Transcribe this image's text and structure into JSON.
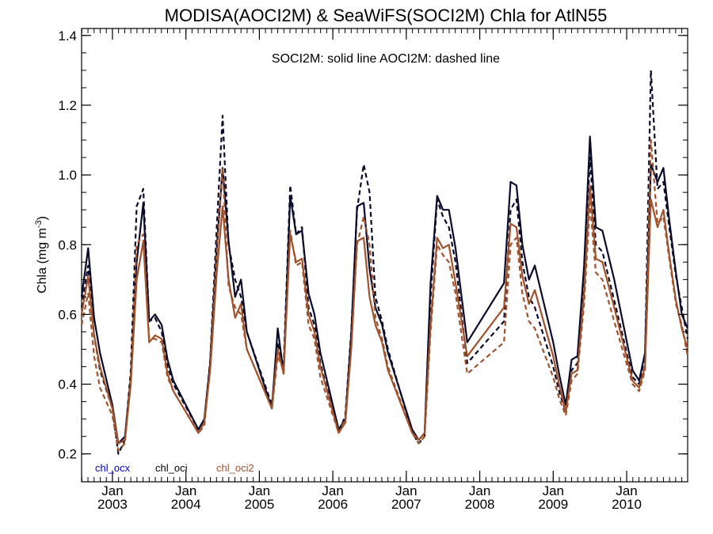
{
  "chart_data": {
    "type": "line",
    "title": "MODISA(AOCI2M) & SeaWiFS(SOCI2M)  Chla for AtlN55",
    "annotation": "SOCI2M: solid line   AOCI2M: dashed line",
    "ylabel": "Chla (mg m",
    "ylabel_sup": "-3",
    "ylabel_end": ")",
    "xlabel": "",
    "xlim": [
      2002.58,
      2010.83
    ],
    "ylim": [
      0.12,
      1.42
    ],
    "y_ticks": [
      0.2,
      0.4,
      0.6,
      0.8,
      1.0,
      1.2,
      1.4
    ],
    "y_tick_labels": [
      "0.2",
      "0.4",
      "0.6",
      "0.8",
      "1.0",
      "1.2",
      "1.4"
    ],
    "x_ticks": [
      2003,
      2004,
      2005,
      2006,
      2007,
      2008,
      2009,
      2010
    ],
    "x_tick_labels": [
      {
        "month": "Jan",
        "year": "2003"
      },
      {
        "month": "Jan",
        "year": "2004"
      },
      {
        "month": "Jan",
        "year": "2005"
      },
      {
        "month": "Jan",
        "year": "2006"
      },
      {
        "month": "Jan",
        "year": "2007"
      },
      {
        "month": "Jan",
        "year": "2008"
      },
      {
        "month": "Jan",
        "year": "2009"
      },
      {
        "month": "Jan",
        "year": "2010"
      }
    ],
    "legend": [
      {
        "name": "chl_ocx",
        "color": "#0000cc"
      },
      {
        "name": "chl_oci",
        "color": "#000000"
      },
      {
        "name": "chl_oci2",
        "color": "#a0522d"
      }
    ],
    "legend_position": "bottom-left",
    "series": [
      {
        "name": "chl_oci",
        "color": "#0a0a2a",
        "dash": false,
        "x": [
          2002.58,
          2002.67,
          2002.75,
          2002.83,
          2003.0,
          2003.08,
          2003.17,
          2003.25,
          2003.33,
          2003.42,
          2003.5,
          2003.58,
          2003.67,
          2003.75,
          2003.83,
          2004.17,
          2004.25,
          2004.33,
          2004.42,
          2004.5,
          2004.58,
          2004.67,
          2004.75,
          2004.83,
          2005.17,
          2005.25,
          2005.33,
          2005.42,
          2005.5,
          2005.58,
          2005.67,
          2005.75,
          2005.83,
          2006.08,
          2006.17,
          2006.25,
          2006.33,
          2006.42,
          2006.5,
          2006.58,
          2006.67,
          2006.75,
          2007.08,
          2007.17,
          2007.25,
          2007.33,
          2007.42,
          2007.5,
          2007.58,
          2007.67,
          2007.83,
          2008.33,
          2008.42,
          2008.5,
          2008.58,
          2008.67,
          2008.75,
          2009.0,
          2009.08,
          2009.17,
          2009.25,
          2009.33,
          2009.42,
          2009.5,
          2009.58,
          2009.67,
          2009.83,
          2010.08,
          2010.17,
          2010.25,
          2010.33,
          2010.42,
          2010.5,
          2010.58,
          2010.67,
          2010.75,
          2010.83
        ],
        "values": [
          0.65,
          0.79,
          0.59,
          0.49,
          0.34,
          0.23,
          0.25,
          0.42,
          0.75,
          0.92,
          0.58,
          0.6,
          0.57,
          0.47,
          0.41,
          0.27,
          0.3,
          0.46,
          0.79,
          1.02,
          0.81,
          0.65,
          0.7,
          0.55,
          0.33,
          0.56,
          0.43,
          0.94,
          0.83,
          0.84,
          0.66,
          0.6,
          0.49,
          0.27,
          0.3,
          0.54,
          0.91,
          0.92,
          0.73,
          0.62,
          0.57,
          0.49,
          0.27,
          0.24,
          0.26,
          0.69,
          0.94,
          0.9,
          0.9,
          0.79,
          0.52,
          0.69,
          0.98,
          0.97,
          0.8,
          0.7,
          0.74,
          0.52,
          0.43,
          0.34,
          0.47,
          0.48,
          0.74,
          1.11,
          0.85,
          0.84,
          0.7,
          0.44,
          0.41,
          0.49,
          1.03,
          0.98,
          1.02,
          0.87,
          0.72,
          0.6,
          0.56
        ]
      },
      {
        "name": "AOCI2M chl_oci",
        "color": "#0a0a2a",
        "dash": true,
        "x": [
          2002.58,
          2002.67,
          2002.75,
          2002.83,
          2003.0,
          2003.08,
          2003.17,
          2003.25,
          2003.33,
          2003.42,
          2003.5,
          2003.58,
          2003.67,
          2003.75,
          2003.83,
          2004.17,
          2004.25,
          2004.33,
          2004.42,
          2004.5,
          2004.58,
          2004.67,
          2004.75,
          2004.83,
          2005.17,
          2005.25,
          2005.33,
          2005.42,
          2005.5,
          2005.58,
          2005.67,
          2005.75,
          2005.83,
          2006.08,
          2006.17,
          2006.25,
          2006.33,
          2006.42,
          2006.5,
          2006.58,
          2006.67,
          2006.75,
          2007.08,
          2007.17,
          2007.25,
          2007.33,
          2007.42,
          2007.5,
          2007.58,
          2007.67,
          2007.83,
          2008.33,
          2008.42,
          2008.5,
          2008.58,
          2008.67,
          2008.75,
          2009.0,
          2009.08,
          2009.17,
          2009.25,
          2009.33,
          2009.42,
          2009.5,
          2009.58,
          2009.67,
          2009.83,
          2010.08,
          2010.17,
          2010.25,
          2010.33,
          2010.42,
          2010.5,
          2010.58,
          2010.67,
          2010.75,
          2010.83
        ],
        "values": [
          0.62,
          0.74,
          0.54,
          0.44,
          0.33,
          0.2,
          0.24,
          0.44,
          0.91,
          0.96,
          0.58,
          0.59,
          0.55,
          0.45,
          0.4,
          0.27,
          0.29,
          0.47,
          0.85,
          1.17,
          0.8,
          0.7,
          0.65,
          0.55,
          0.34,
          0.52,
          0.45,
          0.97,
          0.83,
          0.85,
          0.62,
          0.57,
          0.46,
          0.26,
          0.31,
          0.55,
          0.9,
          1.03,
          0.95,
          0.65,
          0.58,
          0.5,
          0.26,
          0.23,
          0.25,
          0.65,
          0.93,
          0.88,
          0.85,
          0.75,
          0.46,
          0.58,
          0.9,
          0.93,
          0.75,
          0.65,
          0.62,
          0.45,
          0.38,
          0.32,
          0.44,
          0.46,
          0.7,
          1.05,
          0.8,
          0.78,
          0.64,
          0.42,
          0.4,
          0.48,
          1.3,
          0.96,
          0.98,
          0.85,
          0.71,
          0.62,
          0.53
        ]
      },
      {
        "name": "chl_oci2",
        "color": "#a0522d",
        "dash": false,
        "x": [
          2002.58,
          2002.67,
          2002.75,
          2002.83,
          2003.0,
          2003.08,
          2003.17,
          2003.25,
          2003.33,
          2003.42,
          2003.5,
          2003.58,
          2003.67,
          2003.75,
          2003.83,
          2004.17,
          2004.25,
          2004.33,
          2004.42,
          2004.5,
          2004.58,
          2004.67,
          2004.75,
          2004.83,
          2005.17,
          2005.25,
          2005.33,
          2005.42,
          2005.5,
          2005.58,
          2005.67,
          2005.75,
          2005.83,
          2006.08,
          2006.17,
          2006.25,
          2006.33,
          2006.42,
          2006.5,
          2006.58,
          2006.67,
          2006.75,
          2007.08,
          2007.17,
          2007.25,
          2007.33,
          2007.42,
          2007.5,
          2007.58,
          2007.67,
          2007.83,
          2008.33,
          2008.42,
          2008.5,
          2008.58,
          2008.67,
          2008.75,
          2009.0,
          2009.08,
          2009.17,
          2009.25,
          2009.33,
          2009.42,
          2009.5,
          2009.58,
          2009.67,
          2009.83,
          2010.08,
          2010.17,
          2010.25,
          2010.33,
          2010.42,
          2010.5,
          2010.58,
          2010.67,
          2010.75,
          2010.83
        ],
        "values": [
          0.6,
          0.71,
          0.54,
          0.45,
          0.33,
          0.23,
          0.24,
          0.4,
          0.7,
          0.81,
          0.52,
          0.54,
          0.53,
          0.43,
          0.38,
          0.26,
          0.29,
          0.44,
          0.72,
          0.91,
          0.7,
          0.59,
          0.63,
          0.5,
          0.33,
          0.5,
          0.43,
          0.83,
          0.75,
          0.76,
          0.6,
          0.55,
          0.45,
          0.26,
          0.29,
          0.5,
          0.81,
          0.82,
          0.65,
          0.57,
          0.52,
          0.44,
          0.26,
          0.24,
          0.26,
          0.57,
          0.82,
          0.79,
          0.8,
          0.69,
          0.48,
          0.62,
          0.86,
          0.85,
          0.71,
          0.63,
          0.67,
          0.48,
          0.4,
          0.32,
          0.43,
          0.44,
          0.66,
          0.97,
          0.76,
          0.75,
          0.62,
          0.41,
          0.39,
          0.45,
          0.93,
          0.85,
          0.9,
          0.77,
          0.64,
          0.56,
          0.5
        ]
      },
      {
        "name": "AOCI2M chl_oci2",
        "color": "#a0522d",
        "dash": true,
        "x": [
          2002.58,
          2002.67,
          2002.75,
          2002.83,
          2003.0,
          2003.08,
          2003.17,
          2003.25,
          2003.33,
          2003.42,
          2003.5,
          2003.58,
          2003.67,
          2003.75,
          2003.83,
          2004.17,
          2004.25,
          2004.33,
          2004.42,
          2004.5,
          2004.58,
          2004.67,
          2004.75,
          2004.83,
          2005.17,
          2005.25,
          2005.33,
          2005.42,
          2005.5,
          2005.58,
          2005.67,
          2005.75,
          2005.83,
          2006.08,
          2006.17,
          2006.25,
          2006.33,
          2006.42,
          2006.5,
          2006.58,
          2006.67,
          2006.75,
          2007.08,
          2007.17,
          2007.25,
          2007.33,
          2007.42,
          2007.5,
          2007.58,
          2007.67,
          2007.83,
          2008.33,
          2008.42,
          2008.5,
          2008.58,
          2008.67,
          2008.75,
          2009.0,
          2009.08,
          2009.17,
          2009.25,
          2009.33,
          2009.42,
          2009.5,
          2009.58,
          2009.67,
          2009.83,
          2010.08,
          2010.17,
          2010.25,
          2010.33,
          2010.42,
          2010.5,
          2010.58,
          2010.67,
          2010.75,
          2010.83
        ],
        "values": [
          0.57,
          0.66,
          0.48,
          0.39,
          0.31,
          0.21,
          0.23,
          0.42,
          0.8,
          0.83,
          0.53,
          0.53,
          0.52,
          0.42,
          0.38,
          0.26,
          0.28,
          0.45,
          0.78,
          1.02,
          0.68,
          0.62,
          0.6,
          0.5,
          0.33,
          0.48,
          0.44,
          0.84,
          0.74,
          0.75,
          0.57,
          0.53,
          0.42,
          0.26,
          0.3,
          0.5,
          0.8,
          0.88,
          0.8,
          0.59,
          0.53,
          0.45,
          0.26,
          0.23,
          0.25,
          0.55,
          0.8,
          0.77,
          0.75,
          0.66,
          0.43,
          0.52,
          0.8,
          0.82,
          0.66,
          0.58,
          0.56,
          0.42,
          0.36,
          0.31,
          0.41,
          0.43,
          0.63,
          0.92,
          0.72,
          0.7,
          0.58,
          0.4,
          0.38,
          0.44,
          1.1,
          0.86,
          0.88,
          0.76,
          0.63,
          0.57,
          0.48
        ]
      }
    ],
    "grid": false
  }
}
